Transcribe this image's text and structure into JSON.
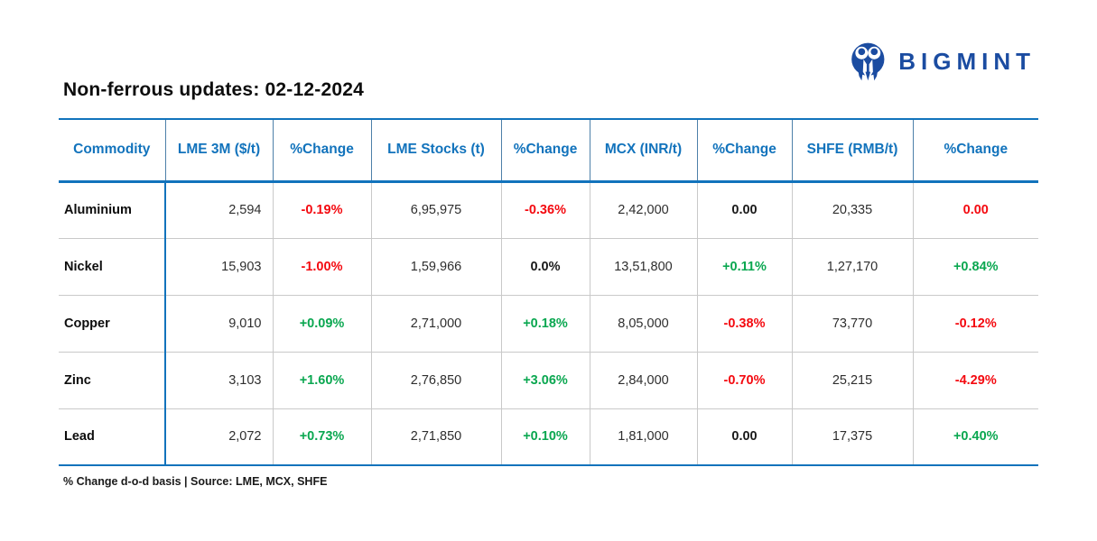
{
  "theme": {
    "accent": "#1273BC",
    "red": "#F40A10",
    "green": "#0AA750",
    "navy": "#1B4CA1",
    "grid": "#C9C9C9"
  },
  "brand": {
    "wordmark": "BIGMINT",
    "icon": "bigmint-figures-in-circle"
  },
  "title": "Non-ferrous updates: 02-12-2024",
  "footnote": "% Change d-o-d basis | Source: LME, MCX, SHFE",
  "chart_data": {
    "type": "table",
    "title": "Non-ferrous updates: 02-12-2024",
    "columns": [
      "Commodity",
      "LME 3M ($/t)",
      "%Change",
      "LME Stocks (t)",
      "%Change",
      "MCX (INR/t)",
      "%Change",
      "SHFE (RMB/t)",
      "%Change"
    ],
    "rows": [
      {
        "commodity": "Aluminium",
        "lme_3m": "2,594",
        "lme_3m_change": {
          "value": "-0.19%",
          "tone": "red"
        },
        "lme_stocks": "6,95,975",
        "lme_stocks_change": {
          "value": "-0.36%",
          "tone": "red"
        },
        "mcx": "2,42,000",
        "mcx_change": {
          "value": "0.00",
          "tone": "neutral"
        },
        "shfe": "20,335",
        "shfe_change": {
          "value": "0.00",
          "tone": "red"
        }
      },
      {
        "commodity": "Nickel",
        "lme_3m": "15,903",
        "lme_3m_change": {
          "value": "-1.00%",
          "tone": "red"
        },
        "lme_stocks": "1,59,966",
        "lme_stocks_change": {
          "value": "0.0%",
          "tone": "neutral"
        },
        "mcx": "13,51,800",
        "mcx_change": {
          "value": "+0.11%",
          "tone": "green"
        },
        "shfe": "1,27,170",
        "shfe_change": {
          "value": "+0.84%",
          "tone": "green"
        }
      },
      {
        "commodity": "Copper",
        "lme_3m": "9,010",
        "lme_3m_change": {
          "value": "+0.09%",
          "tone": "green"
        },
        "lme_stocks": "2,71,000",
        "lme_stocks_change": {
          "value": "+0.18%",
          "tone": "green"
        },
        "mcx": "8,05,000",
        "mcx_change": {
          "value": "-0.38%",
          "tone": "red"
        },
        "shfe": "73,770",
        "shfe_change": {
          "value": "-0.12%",
          "tone": "red"
        }
      },
      {
        "commodity": "Zinc",
        "lme_3m": "3,103",
        "lme_3m_change": {
          "value": "+1.60%",
          "tone": "green"
        },
        "lme_stocks": "2,76,850",
        "lme_stocks_change": {
          "value": "+3.06%",
          "tone": "green"
        },
        "mcx": "2,84,000",
        "mcx_change": {
          "value": "-0.70%",
          "tone": "red"
        },
        "shfe": "25,215",
        "shfe_change": {
          "value": "-4.29%",
          "tone": "red"
        }
      },
      {
        "commodity": "Lead",
        "lme_3m": "2,072",
        "lme_3m_change": {
          "value": "+0.73%",
          "tone": "green"
        },
        "lme_stocks": "2,71,850",
        "lme_stocks_change": {
          "value": "+0.10%",
          "tone": "green"
        },
        "mcx": "1,81,000",
        "mcx_change": {
          "value": "0.00",
          "tone": "neutral"
        },
        "shfe": "17,375",
        "shfe_change": {
          "value": "+0.40%",
          "tone": "green"
        }
      }
    ]
  }
}
